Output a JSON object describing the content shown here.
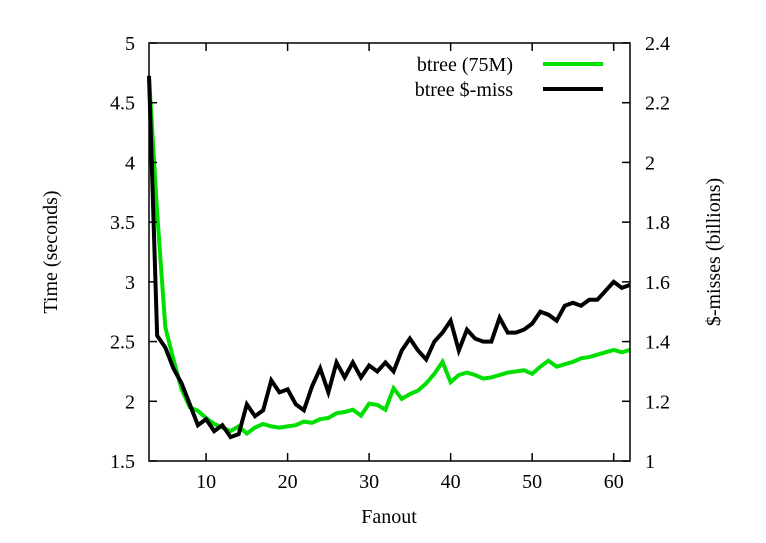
{
  "figure": {
    "background": "#ffffff",
    "text_color": "#000000",
    "border_color": "#000000"
  },
  "chart_data": {
    "type": "line",
    "title": "",
    "xlabel": "Fanout",
    "ylabel_left": "Time (seconds)",
    "ylabel_right": "$-misses (billions)",
    "legend_position": "top-right-inside",
    "grid": false,
    "x_range": [
      3,
      62
    ],
    "y_left_range": [
      1.5,
      5
    ],
    "y_right_range": [
      1,
      2.4
    ],
    "x_ticks": [
      10,
      20,
      30,
      40,
      50,
      60
    ],
    "x_tick_labels": [
      "10",
      "20",
      "30",
      "40",
      "50",
      "60"
    ],
    "y_left_ticks": [
      1.5,
      2,
      2.5,
      3,
      3.5,
      4,
      4.5,
      5
    ],
    "y_left_tick_labels": [
      "1.5",
      "2",
      "2.5",
      "3",
      "3.5",
      "4",
      "4.5",
      "5"
    ],
    "y_right_ticks": [
      1,
      1.2,
      1.4,
      1.6,
      1.8,
      2,
      2.2,
      2.4
    ],
    "y_right_tick_labels": [
      "1",
      "1.2",
      "1.4",
      "1.6",
      "1.8",
      "2",
      "2.2",
      "2.4"
    ],
    "x": [
      3,
      4,
      5,
      6,
      7,
      8,
      9,
      10,
      11,
      12,
      13,
      14,
      15,
      16,
      17,
      18,
      19,
      20,
      21,
      22,
      23,
      24,
      25,
      26,
      27,
      28,
      29,
      30,
      31,
      32,
      33,
      34,
      35,
      36,
      37,
      38,
      39,
      40,
      41,
      42,
      43,
      44,
      45,
      46,
      47,
      48,
      49,
      50,
      51,
      52,
      53,
      54,
      55,
      56,
      57,
      58,
      59,
      60,
      61,
      62
    ],
    "series": [
      {
        "name": "btree (75M)",
        "axis": "left",
        "color": "#00DF00",
        "line_width": 4,
        "values": [
          4.72,
          3.58,
          2.62,
          2.35,
          2.1,
          1.95,
          1.92,
          1.86,
          1.81,
          1.78,
          1.75,
          1.79,
          1.73,
          1.78,
          1.81,
          1.79,
          1.78,
          1.79,
          1.8,
          1.83,
          1.82,
          1.85,
          1.86,
          1.9,
          1.91,
          1.93,
          1.88,
          1.98,
          1.97,
          1.93,
          2.11,
          2.02,
          2.06,
          2.09,
          2.15,
          2.23,
          2.33,
          2.16,
          2.22,
          2.24,
          2.22,
          2.19,
          2.2,
          2.22,
          2.24,
          2.25,
          2.26,
          2.23,
          2.29,
          2.34,
          2.29,
          2.31,
          2.33,
          2.36,
          2.37,
          2.39,
          2.41,
          2.43,
          2.41,
          2.43
        ]
      },
      {
        "name": "btree $-miss",
        "axis": "right",
        "color": "#000000",
        "line_width": 4,
        "values": [
          2.29,
          1.42,
          1.38,
          1.31,
          1.26,
          1.19,
          1.12,
          1.14,
          1.1,
          1.12,
          1.08,
          1.09,
          1.19,
          1.15,
          1.17,
          1.27,
          1.23,
          1.24,
          1.19,
          1.17,
          1.25,
          1.31,
          1.23,
          1.33,
          1.28,
          1.33,
          1.28,
          1.32,
          1.3,
          1.33,
          1.3,
          1.37,
          1.41,
          1.37,
          1.34,
          1.4,
          1.43,
          1.47,
          1.37,
          1.44,
          1.41,
          1.4,
          1.4,
          1.48,
          1.43,
          1.43,
          1.44,
          1.46,
          1.5,
          1.49,
          1.47,
          1.52,
          1.53,
          1.52,
          1.54,
          1.54,
          1.57,
          1.6,
          1.58,
          1.59
        ]
      }
    ]
  }
}
